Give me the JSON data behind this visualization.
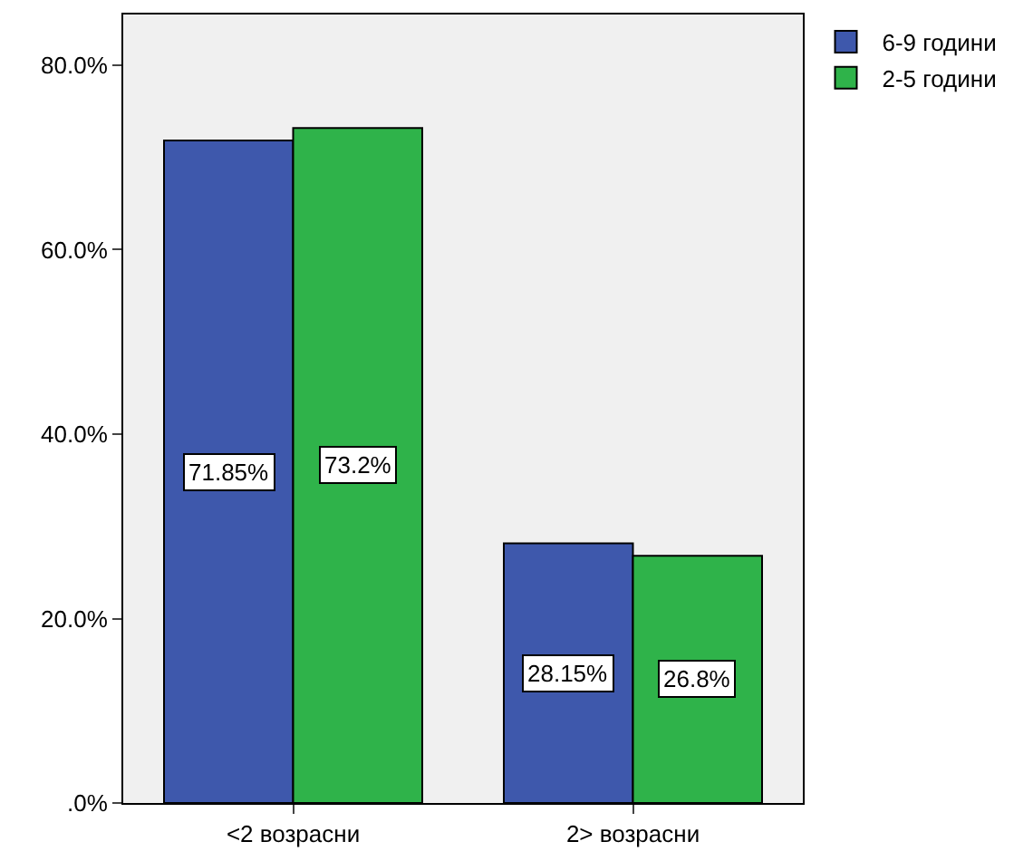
{
  "chart_data": {
    "type": "bar",
    "categories": [
      "<2 возрасни",
      "2> возрасни"
    ],
    "series": [
      {
        "name": "6-9 години",
        "color": "#3e58ac",
        "values": [
          71.85,
          28.15
        ],
        "value_labels": [
          "71.85%",
          "28.15%"
        ]
      },
      {
        "name": "2-5 години",
        "color": "#2fb34a",
        "values": [
          73.2,
          26.8
        ],
        "value_labels": [
          "73.2%",
          "26.8%"
        ]
      }
    ],
    "ylim": [
      0,
      85.5
    ],
    "yticks": [
      {
        "value": 0,
        "label": ".0%"
      },
      {
        "value": 20,
        "label": "20.0%"
      },
      {
        "value": 40,
        "label": "40.0%"
      },
      {
        "value": 60,
        "label": "60.0%"
      },
      {
        "value": 80,
        "label": "80.0%"
      }
    ],
    "grid": false,
    "legend": "top right"
  }
}
